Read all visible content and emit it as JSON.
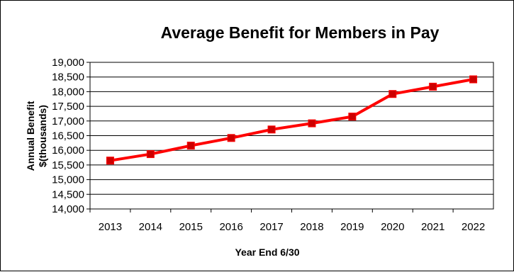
{
  "chart_data": {
    "type": "line",
    "title": "Average Benefit for Members in Pay",
    "xlabel": "Year End 6/30",
    "ylabel_lines": [
      "Annual Benefit",
      "$(thousands)"
    ],
    "categories": [
      "2013",
      "2014",
      "2015",
      "2016",
      "2017",
      "2018",
      "2019",
      "2020",
      "2021",
      "2022"
    ],
    "series": [
      {
        "values": [
          15650,
          15870,
          16160,
          16420,
          16710,
          16920,
          17150,
          17920,
          18170,
          18420
        ],
        "color": "#ff0000",
        "marker_color": "#cc0000"
      }
    ],
    "ylim": [
      14000,
      19000
    ],
    "ytick_step": 500,
    "ytick_labels": [
      "14,000",
      "14,500",
      "15,000",
      "15,500",
      "16,000",
      "16,500",
      "17,000",
      "17,500",
      "18,000",
      "18,500",
      "19,000"
    ],
    "grid": true,
    "legend": "none"
  }
}
